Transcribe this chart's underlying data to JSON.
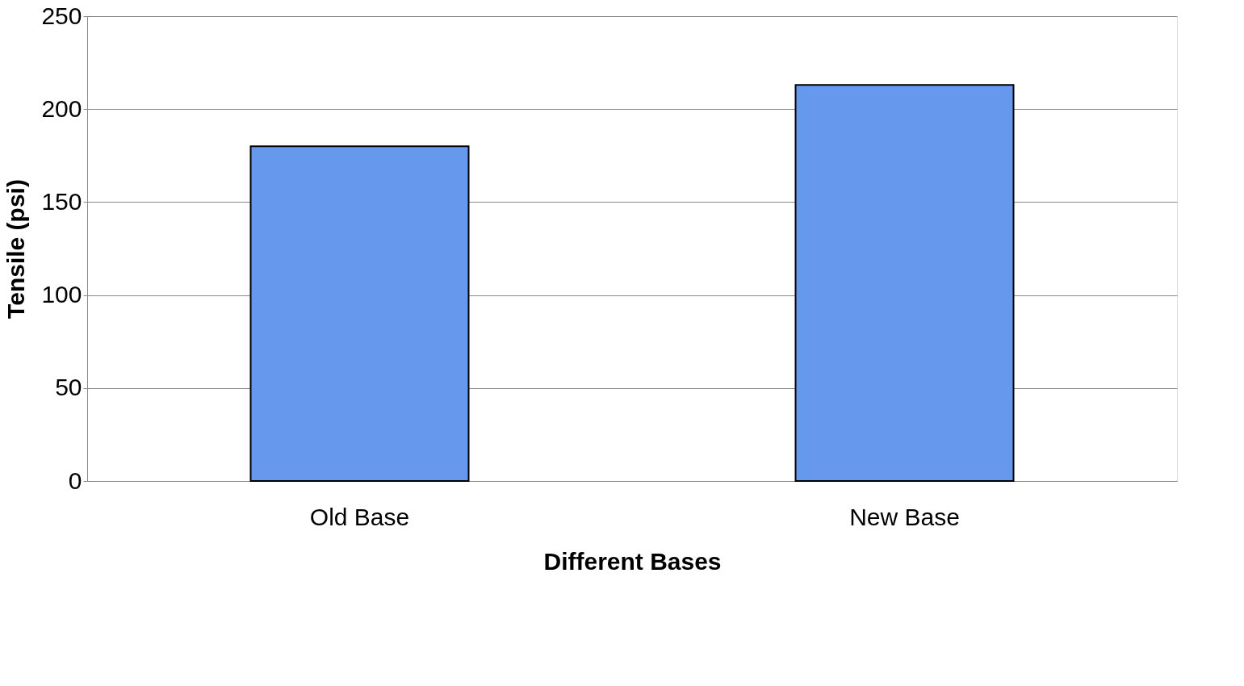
{
  "chart_data": {
    "type": "bar",
    "xlabel": "Different Bases",
    "ylabel": "Tensile (psi)",
    "categories": [
      "Old Base",
      "New Base"
    ],
    "values": [
      180,
      213
    ],
    "color": "#6699ee",
    "ylim": [
      0,
      250
    ],
    "yticks": [
      0,
      50,
      100,
      150,
      200,
      250
    ],
    "grid": "y"
  }
}
